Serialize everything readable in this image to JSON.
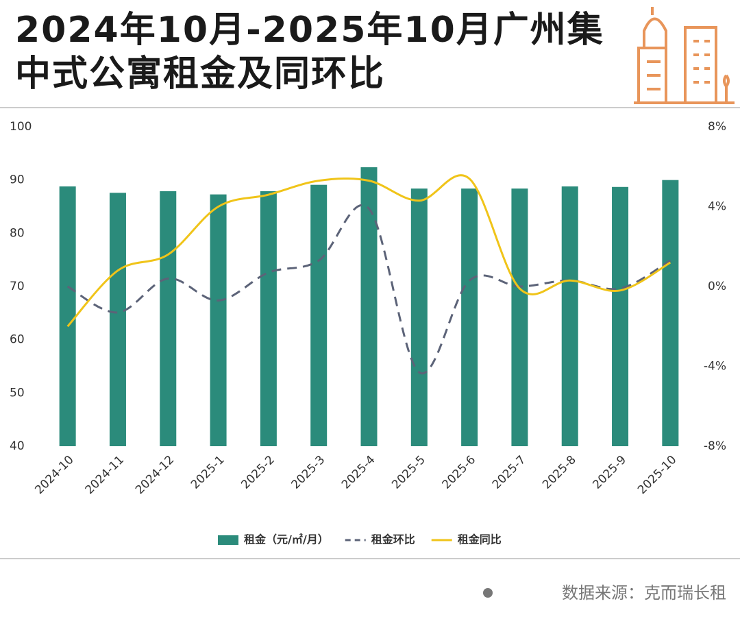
{
  "chart_data": {
    "type": "bar-line",
    "title": "2024年10月-2025年10月广州集中式公寓租金及同环比",
    "categories": [
      "2024-10",
      "2024-11",
      "2024-12",
      "2025-1",
      "2025-2",
      "2025-3",
      "2025-4",
      "2025-5",
      "2025-6",
      "2025-7",
      "2025-8",
      "2025-9",
      "2025-10"
    ],
    "series": [
      {
        "name": "租金（元/㎡/月）",
        "type": "bar",
        "color": "#2b8b7b",
        "values": [
          88.8,
          87.6,
          87.9,
          87.3,
          87.9,
          89.1,
          92.4,
          88.4,
          88.4,
          88.4,
          88.8,
          88.7,
          90.0
        ]
      },
      {
        "name": "租金环比",
        "type": "line",
        "dashed": true,
        "axis": "y2",
        "color": "#5c6378",
        "values": [
          0.0,
          -1.3,
          0.4,
          -0.7,
          0.7,
          1.3,
          3.9,
          -4.3,
          0.3,
          0.0,
          0.3,
          -0.1,
          1.3
        ]
      },
      {
        "name": "租金同比",
        "type": "line",
        "axis": "y2",
        "color": "#f0c419",
        "values": [
          -2.0,
          0.8,
          1.6,
          4.0,
          4.6,
          5.3,
          5.3,
          4.3,
          5.4,
          -0.1,
          0.3,
          -0.2,
          1.2
        ]
      }
    ],
    "ylim": [
      40,
      100
    ],
    "yticks": [
      40,
      50,
      60,
      70,
      80,
      90,
      100
    ],
    "y2lim": [
      -8,
      8
    ],
    "y2ticks": [
      {
        "value": -8,
        "label": "-8%"
      },
      {
        "value": -4,
        "label": "-4%"
      },
      {
        "value": 0,
        "label": "0%"
      },
      {
        "value": 4,
        "label": "4%"
      },
      {
        "value": 8,
        "label": "8%"
      }
    ],
    "legend": "bottom",
    "source": "数据来源：克而瑞长租"
  }
}
